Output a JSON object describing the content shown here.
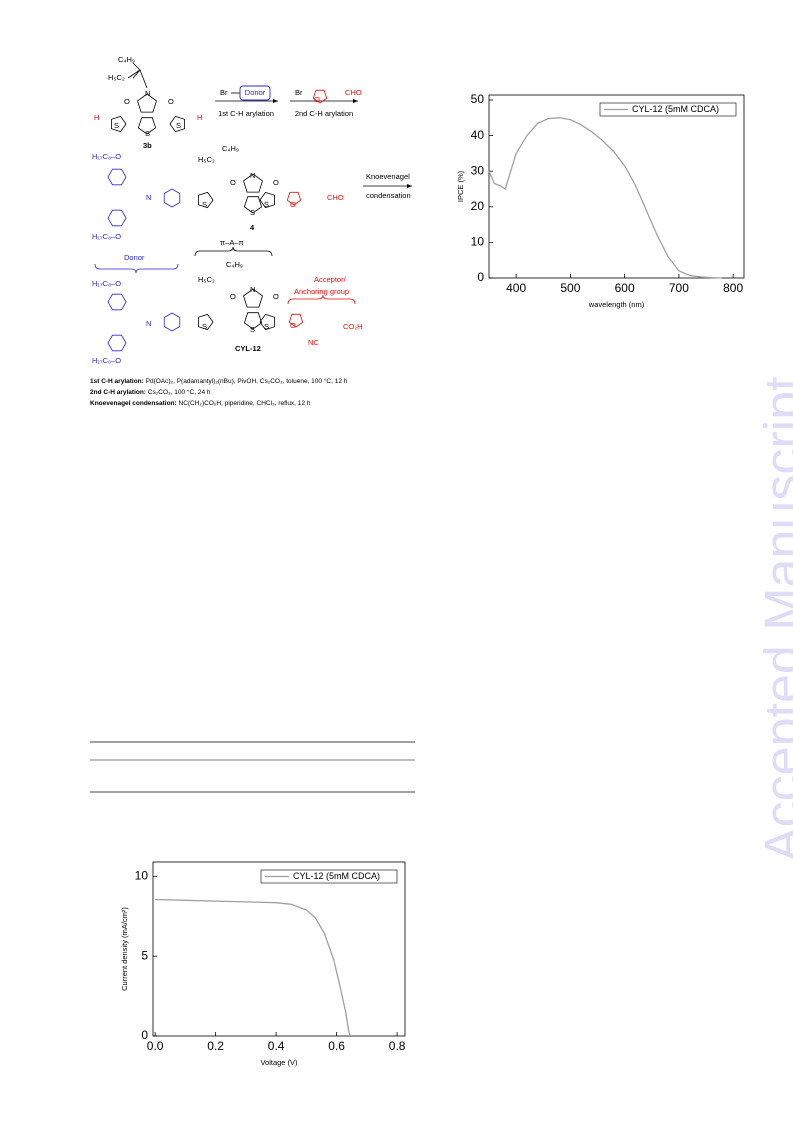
{
  "scheme": {
    "chain_top_1": "C₄H₉",
    "chain_side_1": "H₅C₂",
    "n_1": "N",
    "o_1a": "O",
    "o_1b": "O",
    "s_1a": "S",
    "s_1b": "S",
    "s_1c": "S",
    "h_1a": "H",
    "h_1b": "H",
    "compound_3b": "3b",
    "br_1": "Br",
    "donor_box": "Donor",
    "step_1": "1st C-H arylation",
    "br_2": "Br",
    "o_furan_1": "O",
    "cho_1": "CHO",
    "step_2": "2nd C-H arylation",
    "alkoxy_2a": "H₁₇C₈–O",
    "alkoxy_2b": "H₁₇C₈–O",
    "n_2a": "N",
    "chain_top_2": "C₄H₉",
    "chain_side_2": "H₅C₂",
    "n_2b": "N",
    "o_2a": "O",
    "o_2b": "O",
    "s_2a": "S",
    "s_2b": "S",
    "s_2c": "S",
    "o_furan_2": "O",
    "cho_2": "CHO",
    "compound_4": "4",
    "knoev_1": "Knoevenagel",
    "knoev_2": "condensation",
    "pi_a_pi": "π–A–π",
    "donor_label": "Donor",
    "acceptor_1": "Acceptor/",
    "acceptor_2": "Anchoring group",
    "alkoxy_3a": "H₁₇C₈–O",
    "alkoxy_3b": "H₁₇C₈–O",
    "n_3a": "N",
    "chain_top_3": "C₄H₉",
    "chain_side_3": "H₅C₂",
    "n_3b": "N",
    "o_3a": "O",
    "o_3b": "O",
    "s_3a": "S",
    "s_3b": "S",
    "s_3c": "S",
    "o_furan_3": "O",
    "nc": "NC",
    "co2h": "CO₂H",
    "compound_cyl": "CYL-12",
    "cond_1_head": "1st C-H arylation:",
    "cond_1_text": "Pd(OAc)₂, P(adamantyl)₂(nBu), PivOH, Cs₂CO₃, toluene, 100 °C, 12 h",
    "cond_2_head": "2nd C-H arylation:",
    "cond_2_text": "Cs₂CO₃, 100 °C, 24 h",
    "cond_3_head": "Knoevenagel condensation:",
    "cond_3_text": "NC(CH₂)CO₂H, piperidine, CHCl₃, reflux, 12 h"
  },
  "watermark": "Accepted Manuscript",
  "chart_data": [
    {
      "type": "line",
      "xlabel": "wavelength (nm)",
      "ylabel": "IPCE (%)",
      "x": [
        350,
        360,
        370,
        380,
        390,
        400,
        420,
        440,
        460,
        480,
        500,
        520,
        540,
        560,
        580,
        600,
        620,
        640,
        660,
        680,
        700,
        720,
        740,
        760,
        780
      ],
      "series": [
        {
          "name": "CYL-12 (5mM CDCA)",
          "color": "#a0a0a0",
          "values": [
            30,
            26.5,
            26,
            25,
            30,
            35,
            40,
            43.5,
            44.8,
            45,
            44.5,
            43,
            41,
            38.5,
            35.5,
            31.5,
            26,
            19,
            12,
            6,
            2,
            0.7,
            0.3,
            0.1,
            0
          ]
        }
      ],
      "xlim": [
        350,
        820
      ],
      "ylim": [
        0,
        51.4
      ],
      "xticks": [
        400,
        500,
        600,
        700,
        800
      ],
      "yticks": [
        0,
        10,
        20,
        30,
        40,
        50
      ],
      "legend": "upper right"
    },
    {
      "type": "line",
      "xlabel": "Voltage (V)",
      "ylabel": "Current density (mA/cm²)",
      "x": [
        0,
        0.1,
        0.2,
        0.3,
        0.4,
        0.45,
        0.5,
        0.53,
        0.56,
        0.59,
        0.61,
        0.63,
        0.64,
        0.645
      ],
      "series": [
        {
          "name": "CYL-12 (5mM CDCA)",
          "color": "#a0a0a0",
          "values": [
            8.55,
            8.5,
            8.45,
            8.4,
            8.35,
            8.25,
            7.9,
            7.4,
            6.4,
            4.8,
            3.2,
            1.5,
            0.3,
            0
          ]
        }
      ],
      "xlim": [
        -0.007,
        0.826
      ],
      "ylim": [
        0,
        10.9
      ],
      "xticks": [
        {
          "value": 0,
          "label": "0.0"
        },
        0.2,
        0.4,
        0.6,
        0.8
      ],
      "yticks": [
        0,
        5,
        10
      ],
      "legend": "upper right"
    }
  ]
}
